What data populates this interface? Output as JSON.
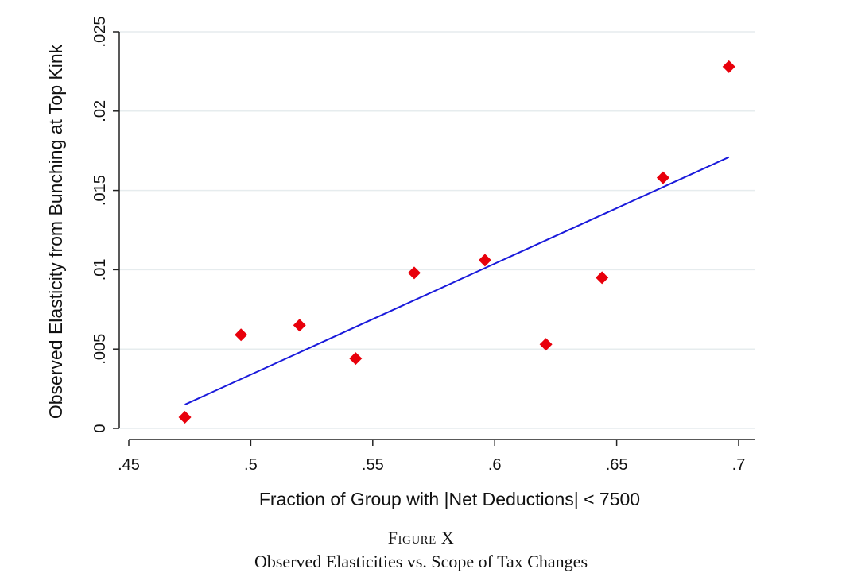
{
  "chart_data": {
    "type": "scatter",
    "xlabel": "Fraction of Group with |Net Deductions| < 7500",
    "ylabel": "Observed Elasticity from Bunching at Top Kink",
    "xlim": [
      0.45,
      0.7
    ],
    "ylim": [
      0,
      0.025
    ],
    "x_ticks": [
      {
        "value": 0.45,
        "label": ".45"
      },
      {
        "value": 0.5,
        "label": ".5"
      },
      {
        "value": 0.55,
        "label": ".55"
      },
      {
        "value": 0.6,
        "label": ".6"
      },
      {
        "value": 0.65,
        "label": ".65"
      },
      {
        "value": 0.7,
        "label": ".7"
      }
    ],
    "y_ticks": [
      {
        "value": 0,
        "label": "0"
      },
      {
        "value": 0.005,
        "label": ".005"
      },
      {
        "value": 0.01,
        "label": ".01"
      },
      {
        "value": 0.015,
        "label": ".015"
      },
      {
        "value": 0.02,
        "label": ".02"
      },
      {
        "value": 0.025,
        "label": ".025"
      }
    ],
    "grid": "horizontal",
    "points": [
      {
        "x": 0.473,
        "y": 0.0007
      },
      {
        "x": 0.496,
        "y": 0.0059
      },
      {
        "x": 0.52,
        "y": 0.0065
      },
      {
        "x": 0.543,
        "y": 0.0044
      },
      {
        "x": 0.567,
        "y": 0.0098
      },
      {
        "x": 0.596,
        "y": 0.0106
      },
      {
        "x": 0.621,
        "y": 0.0053
      },
      {
        "x": 0.644,
        "y": 0.0095
      },
      {
        "x": 0.669,
        "y": 0.0158
      },
      {
        "x": 0.696,
        "y": 0.0228
      }
    ],
    "fit_line": {
      "x": [
        0.473,
        0.696
      ],
      "y": [
        0.0015,
        0.0171
      ]
    },
    "colors": {
      "points": "#e8000b",
      "fit_line": "#1a1adb",
      "grid": "#e6ecee",
      "axis": "#222222"
    }
  },
  "caption": {
    "label": "Figure X",
    "subtitle": "Observed Elasticities vs. Scope of Tax Changes"
  }
}
